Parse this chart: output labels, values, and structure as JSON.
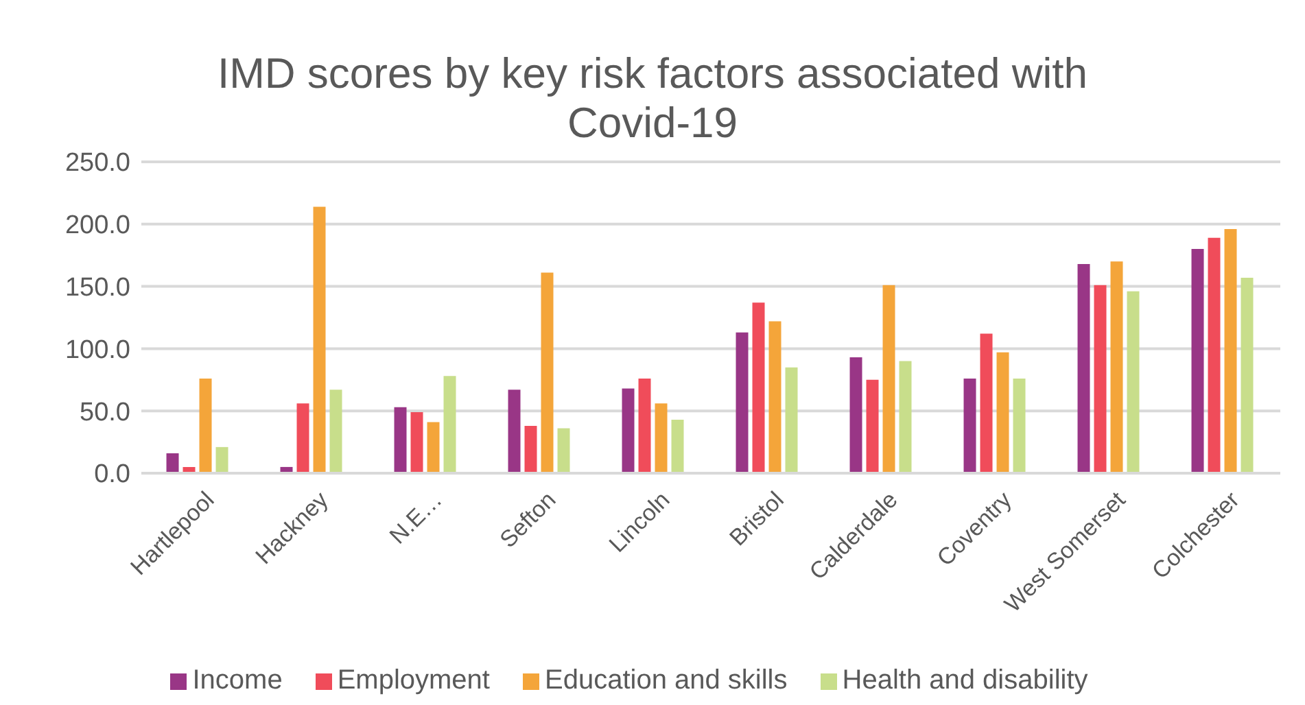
{
  "chart_data": {
    "type": "bar",
    "title": "IMD scores by key risk factors associated with Covid-19",
    "categories": [
      "Hartlepool",
      "Hackney",
      "N.E…",
      "Sefton",
      "Lincoln",
      "Bristol",
      "Calderdale",
      "Coventry",
      "West Somerset",
      "Colchester"
    ],
    "series": [
      {
        "name": "Income",
        "color": "#993686",
        "values": [
          16,
          5,
          53,
          67,
          68,
          113,
          93,
          76,
          168,
          180
        ]
      },
      {
        "name": "Employment",
        "color": "#f04c5a",
        "values": [
          5,
          56,
          49,
          38,
          76,
          137,
          75,
          112,
          151,
          189
        ]
      },
      {
        "name": "Education and skills",
        "color": "#f4a53a",
        "values": [
          76,
          214,
          41,
          161,
          56,
          122,
          151,
          97,
          170,
          196
        ]
      },
      {
        "name": "Health and disability",
        "color": "#c8de8b",
        "values": [
          21,
          67,
          78,
          36,
          43,
          85,
          90,
          76,
          146,
          157
        ]
      }
    ],
    "ylim": [
      0,
      250
    ],
    "yticks": [
      {
        "value": 0,
        "label": "0.0"
      },
      {
        "value": 50,
        "label": "50.0"
      },
      {
        "value": 100,
        "label": "100.0"
      },
      {
        "value": 150,
        "label": "150.0"
      },
      {
        "value": 200,
        "label": "200.0"
      },
      {
        "value": 250,
        "label": "250.0"
      }
    ],
    "grid": "y",
    "legend": "bottom"
  }
}
